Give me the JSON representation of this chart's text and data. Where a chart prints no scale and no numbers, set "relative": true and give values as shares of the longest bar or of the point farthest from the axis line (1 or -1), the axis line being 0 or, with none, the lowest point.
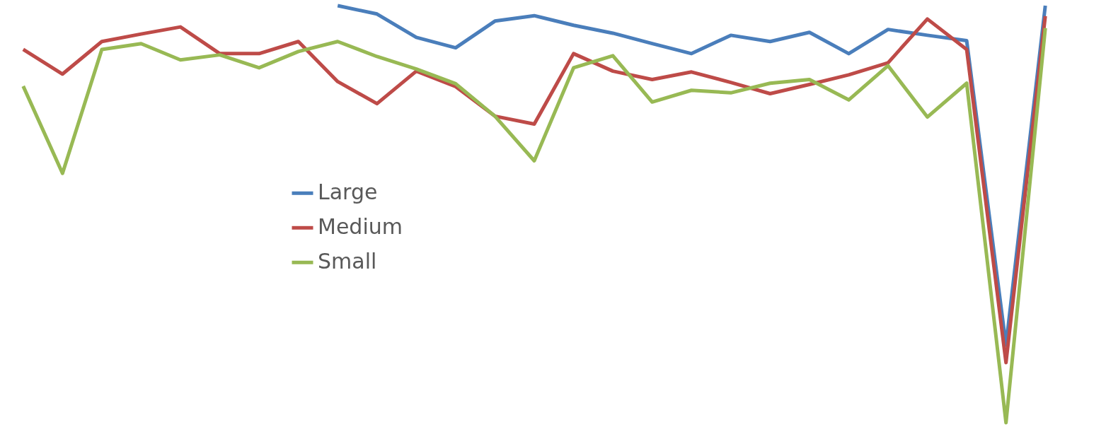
{
  "chart_data": {
    "type": "line",
    "relative": true,
    "legend": "center",
    "grid": false,
    "marker": "none",
    "line_style": "solid",
    "categories": [
      null,
      null,
      null,
      null,
      null,
      null,
      null,
      null,
      null,
      null,
      null,
      null,
      null,
      null,
      null,
      null,
      null,
      null,
      null,
      null,
      null,
      null,
      null,
      null,
      null,
      null,
      null
    ],
    "series": [
      {
        "name": "Large",
        "color": "#4a7ebb",
        "values": [
          null,
          null,
          null,
          null,
          null,
          null,
          null,
          null,
          1.0,
          0.98,
          0.924,
          0.899,
          0.963,
          0.976,
          0.953,
          0.934,
          0.909,
          0.885,
          0.929,
          0.914,
          0.936,
          0.885,
          0.943,
          0.929,
          0.916,
          0.186,
          1.0
        ]
      },
      {
        "name": "Medium",
        "color": "#be4b48",
        "values": [
          0.895,
          0.836,
          0.914,
          0.932,
          0.949,
          0.885,
          0.885,
          0.914,
          0.818,
          0.765,
          0.843,
          0.806,
          0.735,
          0.716,
          0.885,
          0.843,
          0.823,
          0.841,
          0.816,
          0.789,
          0.811,
          0.834,
          0.863,
          0.968,
          0.895,
          0.144,
          0.975
        ]
      },
      {
        "name": "Small",
        "color": "#98b954",
        "values": [
          0.807,
          0.598,
          0.895,
          0.909,
          0.87,
          0.882,
          0.851,
          0.89,
          0.914,
          0.878,
          0.848,
          0.813,
          0.735,
          0.628,
          0.851,
          0.88,
          0.769,
          0.797,
          0.791,
          0.814,
          0.823,
          0.774,
          0.856,
          0.733,
          0.814,
          0.0,
          0.946
        ]
      }
    ]
  }
}
